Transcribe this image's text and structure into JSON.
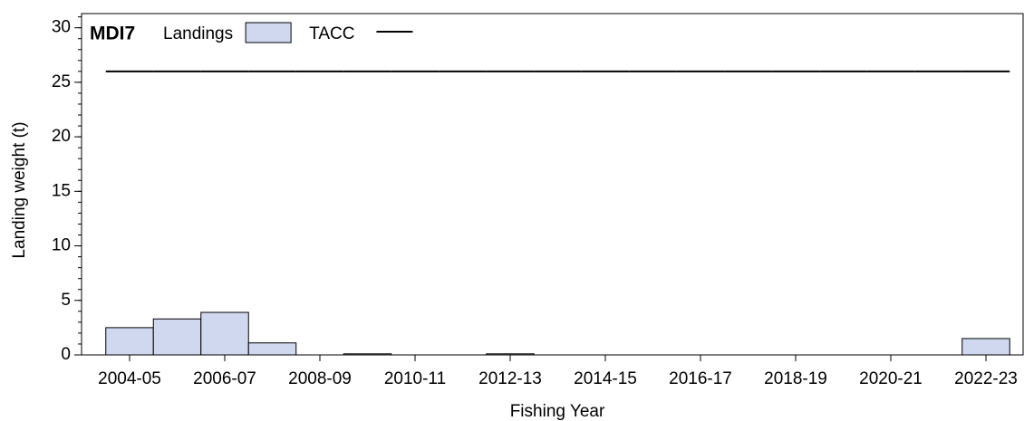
{
  "chart_data": {
    "type": "bar",
    "title": "MDI7",
    "x_label": "Fishing Year",
    "y_label": "Landing weight (t)",
    "categories": [
      "2004-05",
      null,
      "2006-07",
      null,
      "2008-09",
      null,
      "2010-11",
      null,
      "2012-13",
      null,
      "2014-15",
      null,
      "2016-17",
      null,
      "2018-19",
      null,
      "2020-21",
      null,
      "2022-23"
    ],
    "series": [
      {
        "name": "Landings",
        "type": "bar",
        "color": "#d0d8f0",
        "values": [
          2.5,
          3.3,
          3.9,
          1.1,
          0,
          0.1,
          0,
          0,
          0.1,
          0,
          0,
          0,
          0,
          0,
          0,
          0,
          0,
          0,
          1.5
        ]
      },
      {
        "name": "TACC",
        "type": "line",
        "color": "#000000",
        "values": [
          26,
          26,
          26,
          26,
          26,
          26,
          26,
          26,
          26,
          26,
          26,
          26,
          26,
          26,
          26,
          26,
          26,
          26,
          26
        ]
      }
    ],
    "ylim": [
      0,
      31.3
    ],
    "yticks": [
      0,
      5,
      10,
      15,
      20,
      25,
      30
    ],
    "legend": "top-left"
  }
}
